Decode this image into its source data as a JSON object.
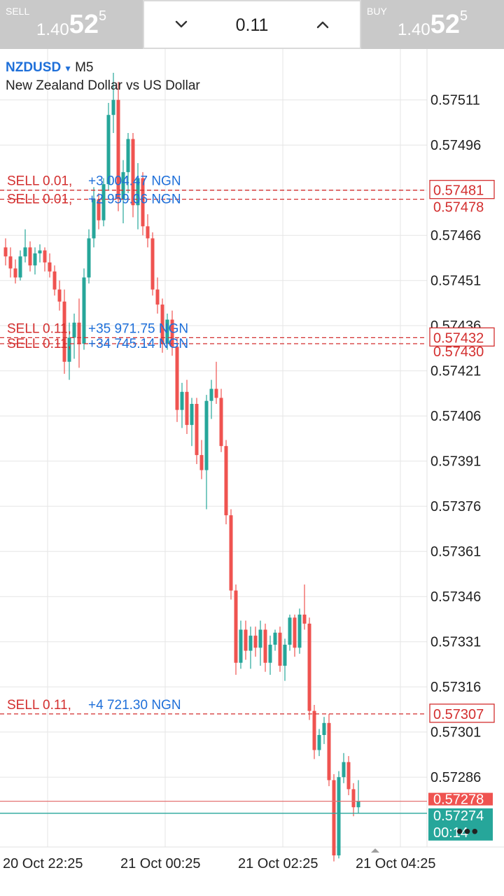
{
  "trade_bar": {
    "sell": {
      "label": "SELL",
      "price_prefix": "1.40",
      "price_big": "52",
      "price_sup": "5"
    },
    "buy": {
      "label": "BUY",
      "price_prefix": "1.40",
      "price_big": "52",
      "price_sup": "5"
    },
    "volume": "0.11",
    "down_icon": "chevron-down-icon",
    "up_icon": "chevron-up-icon"
  },
  "symbol": {
    "name": "NZDUSD",
    "timeframe": "M5",
    "description": "New Zealand Dollar vs US Dollar"
  },
  "colors": {
    "bull": "#26a69a",
    "bear": "#ef5350",
    "order": "#d32f2f",
    "profit": "#1e6fd9",
    "grid": "#e6e6e6",
    "bid_line": "#e57373",
    "ask_line": "#26a69a"
  },
  "chart_data": {
    "type": "candlestick",
    "y_range": [
      0.57255,
      0.57525
    ],
    "y_ticks": [
      "0.57511",
      "0.57496",
      "0.57481",
      "0.57466",
      "0.57451",
      "0.57436",
      "0.57421",
      "0.57406",
      "0.57391",
      "0.57376",
      "0.57361",
      "0.57346",
      "0.57331",
      "0.57316",
      "0.57301",
      "0.57286"
    ],
    "x_ticks": [
      {
        "label": "20 Oct 22:25",
        "index": 0
      },
      {
        "label": "21 Oct 00:25",
        "index": 24
      },
      {
        "label": "21 Oct 02:25",
        "index": 48
      },
      {
        "label": "21 Oct 04:25",
        "index": 72
      }
    ],
    "candles": [
      [
        0.57462,
        0.57465,
        0.57456,
        0.57459
      ],
      [
        0.57459,
        0.57462,
        0.57452,
        0.57455
      ],
      [
        0.57455,
        0.57458,
        0.5745,
        0.57452
      ],
      [
        0.57452,
        0.57461,
        0.57451,
        0.57459
      ],
      [
        0.57459,
        0.57468,
        0.57457,
        0.57462
      ],
      [
        0.57462,
        0.57464,
        0.57454,
        0.57456
      ],
      [
        0.57456,
        0.57462,
        0.57453,
        0.5746
      ],
      [
        0.5746,
        0.57463,
        0.57457,
        0.57461
      ],
      [
        0.57461,
        0.57462,
        0.57454,
        0.57457
      ],
      [
        0.57457,
        0.5746,
        0.57452,
        0.57454
      ],
      [
        0.57454,
        0.57456,
        0.57446,
        0.57448
      ],
      [
        0.57448,
        0.57451,
        0.57441,
        0.57444
      ],
      [
        0.57444,
        0.57448,
        0.5742,
        0.57424
      ],
      [
        0.57424,
        0.57437,
        0.57418,
        0.57432
      ],
      [
        0.57432,
        0.5744,
        0.57425,
        0.57437
      ],
      [
        0.57437,
        0.57445,
        0.57422,
        0.5743
      ],
      [
        0.5743,
        0.57455,
        0.57428,
        0.57452
      ],
      [
        0.57452,
        0.57468,
        0.5745,
        0.57465
      ],
      [
        0.57465,
        0.57482,
        0.57462,
        0.57478
      ],
      [
        0.57478,
        0.5748,
        0.57468,
        0.57471
      ],
      [
        0.57471,
        0.57485,
        0.57469,
        0.57483
      ],
      [
        0.57483,
        0.5751,
        0.57481,
        0.57506
      ],
      [
        0.57506,
        0.5752,
        0.575,
        0.57511
      ],
      [
        0.57511,
        0.57517,
        0.57474,
        0.57478
      ],
      [
        0.57478,
        0.57491,
        0.5747,
        0.57487
      ],
      [
        0.57487,
        0.575,
        0.5748,
        0.57498
      ],
      [
        0.57498,
        0.575,
        0.57472,
        0.57476
      ],
      [
        0.57476,
        0.5749,
        0.57468,
        0.57485
      ],
      [
        0.57485,
        0.57487,
        0.57466,
        0.57469
      ],
      [
        0.57469,
        0.57473,
        0.57462,
        0.57465
      ],
      [
        0.57465,
        0.57467,
        0.57446,
        0.57448
      ],
      [
        0.57448,
        0.57452,
        0.5744,
        0.57443
      ],
      [
        0.57443,
        0.57445,
        0.57427,
        0.5743
      ],
      [
        0.5743,
        0.5744,
        0.57428,
        0.57438
      ],
      [
        0.57438,
        0.57441,
        0.57426,
        0.57429
      ],
      [
        0.57429,
        0.57432,
        0.57404,
        0.57408
      ],
      [
        0.57408,
        0.57417,
        0.57402,
        0.57414
      ],
      [
        0.57414,
        0.57418,
        0.574,
        0.57403
      ],
      [
        0.57403,
        0.57412,
        0.57396,
        0.5741
      ],
      [
        0.5741,
        0.57412,
        0.5739,
        0.57393
      ],
      [
        0.57393,
        0.57398,
        0.57385,
        0.57388
      ],
      [
        0.57388,
        0.57413,
        0.57375,
        0.57411
      ],
      [
        0.57411,
        0.57418,
        0.57405,
        0.57415
      ],
      [
        0.57415,
        0.57424,
        0.5741,
        0.57412
      ],
      [
        0.57412,
        0.57415,
        0.57394,
        0.57396
      ],
      [
        0.57396,
        0.57398,
        0.5737,
        0.57373
      ],
      [
        0.57373,
        0.57375,
        0.57345,
        0.57348
      ],
      [
        0.57348,
        0.5735,
        0.5732,
        0.57324
      ],
      [
        0.57324,
        0.57338,
        0.57322,
        0.57335
      ],
      [
        0.57335,
        0.57338,
        0.57325,
        0.57328
      ],
      [
        0.57328,
        0.57336,
        0.57322,
        0.57333
      ],
      [
        0.57333,
        0.57336,
        0.57326,
        0.57329
      ],
      [
        0.57329,
        0.57338,
        0.57323,
        0.57335
      ],
      [
        0.57335,
        0.57337,
        0.57321,
        0.57324
      ],
      [
        0.57324,
        0.57333,
        0.5732,
        0.5733
      ],
      [
        0.5733,
        0.57335,
        0.57328,
        0.57334
      ],
      [
        0.57334,
        0.57336,
        0.57321,
        0.57323
      ],
      [
        0.57323,
        0.57332,
        0.57318,
        0.5733
      ],
      [
        0.5733,
        0.5734,
        0.57328,
        0.57339
      ],
      [
        0.57339,
        0.5734,
        0.57326,
        0.57329
      ],
      [
        0.57329,
        0.57342,
        0.57327,
        0.5734
      ],
      [
        0.5734,
        0.5735,
        0.57335,
        0.57337
      ],
      [
        0.57337,
        0.57339,
        0.57305,
        0.57308
      ],
      [
        0.57308,
        0.5731,
        0.57292,
        0.57295
      ],
      [
        0.57295,
        0.57302,
        0.57293,
        0.573
      ],
      [
        0.573,
        0.57306,
        0.57297,
        0.57304
      ],
      [
        0.57304,
        0.57307,
        0.57283,
        0.57285
      ],
      [
        0.57285,
        0.57287,
        0.57258,
        0.5726
      ],
      [
        0.5726,
        0.57288,
        0.57259,
        0.57286
      ],
      [
        0.57286,
        0.57294,
        0.57284,
        0.57291
      ],
      [
        0.57291,
        0.57293,
        0.5728,
        0.57282
      ],
      [
        0.57282,
        0.57284,
        0.57273,
        0.57276
      ],
      [
        0.57276,
        0.57285,
        0.57274,
        0.57278
      ]
    ],
    "orders": [
      {
        "label": "SELL 0.01,",
        "profit": "+3 004.47 NGN",
        "price": 0.57481,
        "price_label": "0.57481",
        "boxed": true,
        "offset": -7
      },
      {
        "label": "SELL 0.01,",
        "profit": "+2 959.06 NGN",
        "price": 0.57478,
        "price_label": "0.57478",
        "boxed": false,
        "offset": 6
      },
      {
        "label": "SELL 0.11,",
        "profit": "+35 971.75 NGN",
        "price": 0.57432,
        "price_label": "0.57432",
        "boxed": true,
        "offset": -7
      },
      {
        "label": "SELL 0.11,",
        "profit": "+34 745.14 NGN",
        "price": 0.5743,
        "price_label": "0.57430",
        "boxed": false,
        "offset": 6
      },
      {
        "label": "SELL 0.11,",
        "profit": "+4 721.30 NGN",
        "price": 0.57307,
        "price_label": "0.57307",
        "boxed": true,
        "offset": -7
      }
    ],
    "bid": {
      "price": 0.57278,
      "label": "0.57278"
    },
    "ask": {
      "price": 0.57274,
      "label": "0.57274",
      "timer": "00:14"
    }
  }
}
